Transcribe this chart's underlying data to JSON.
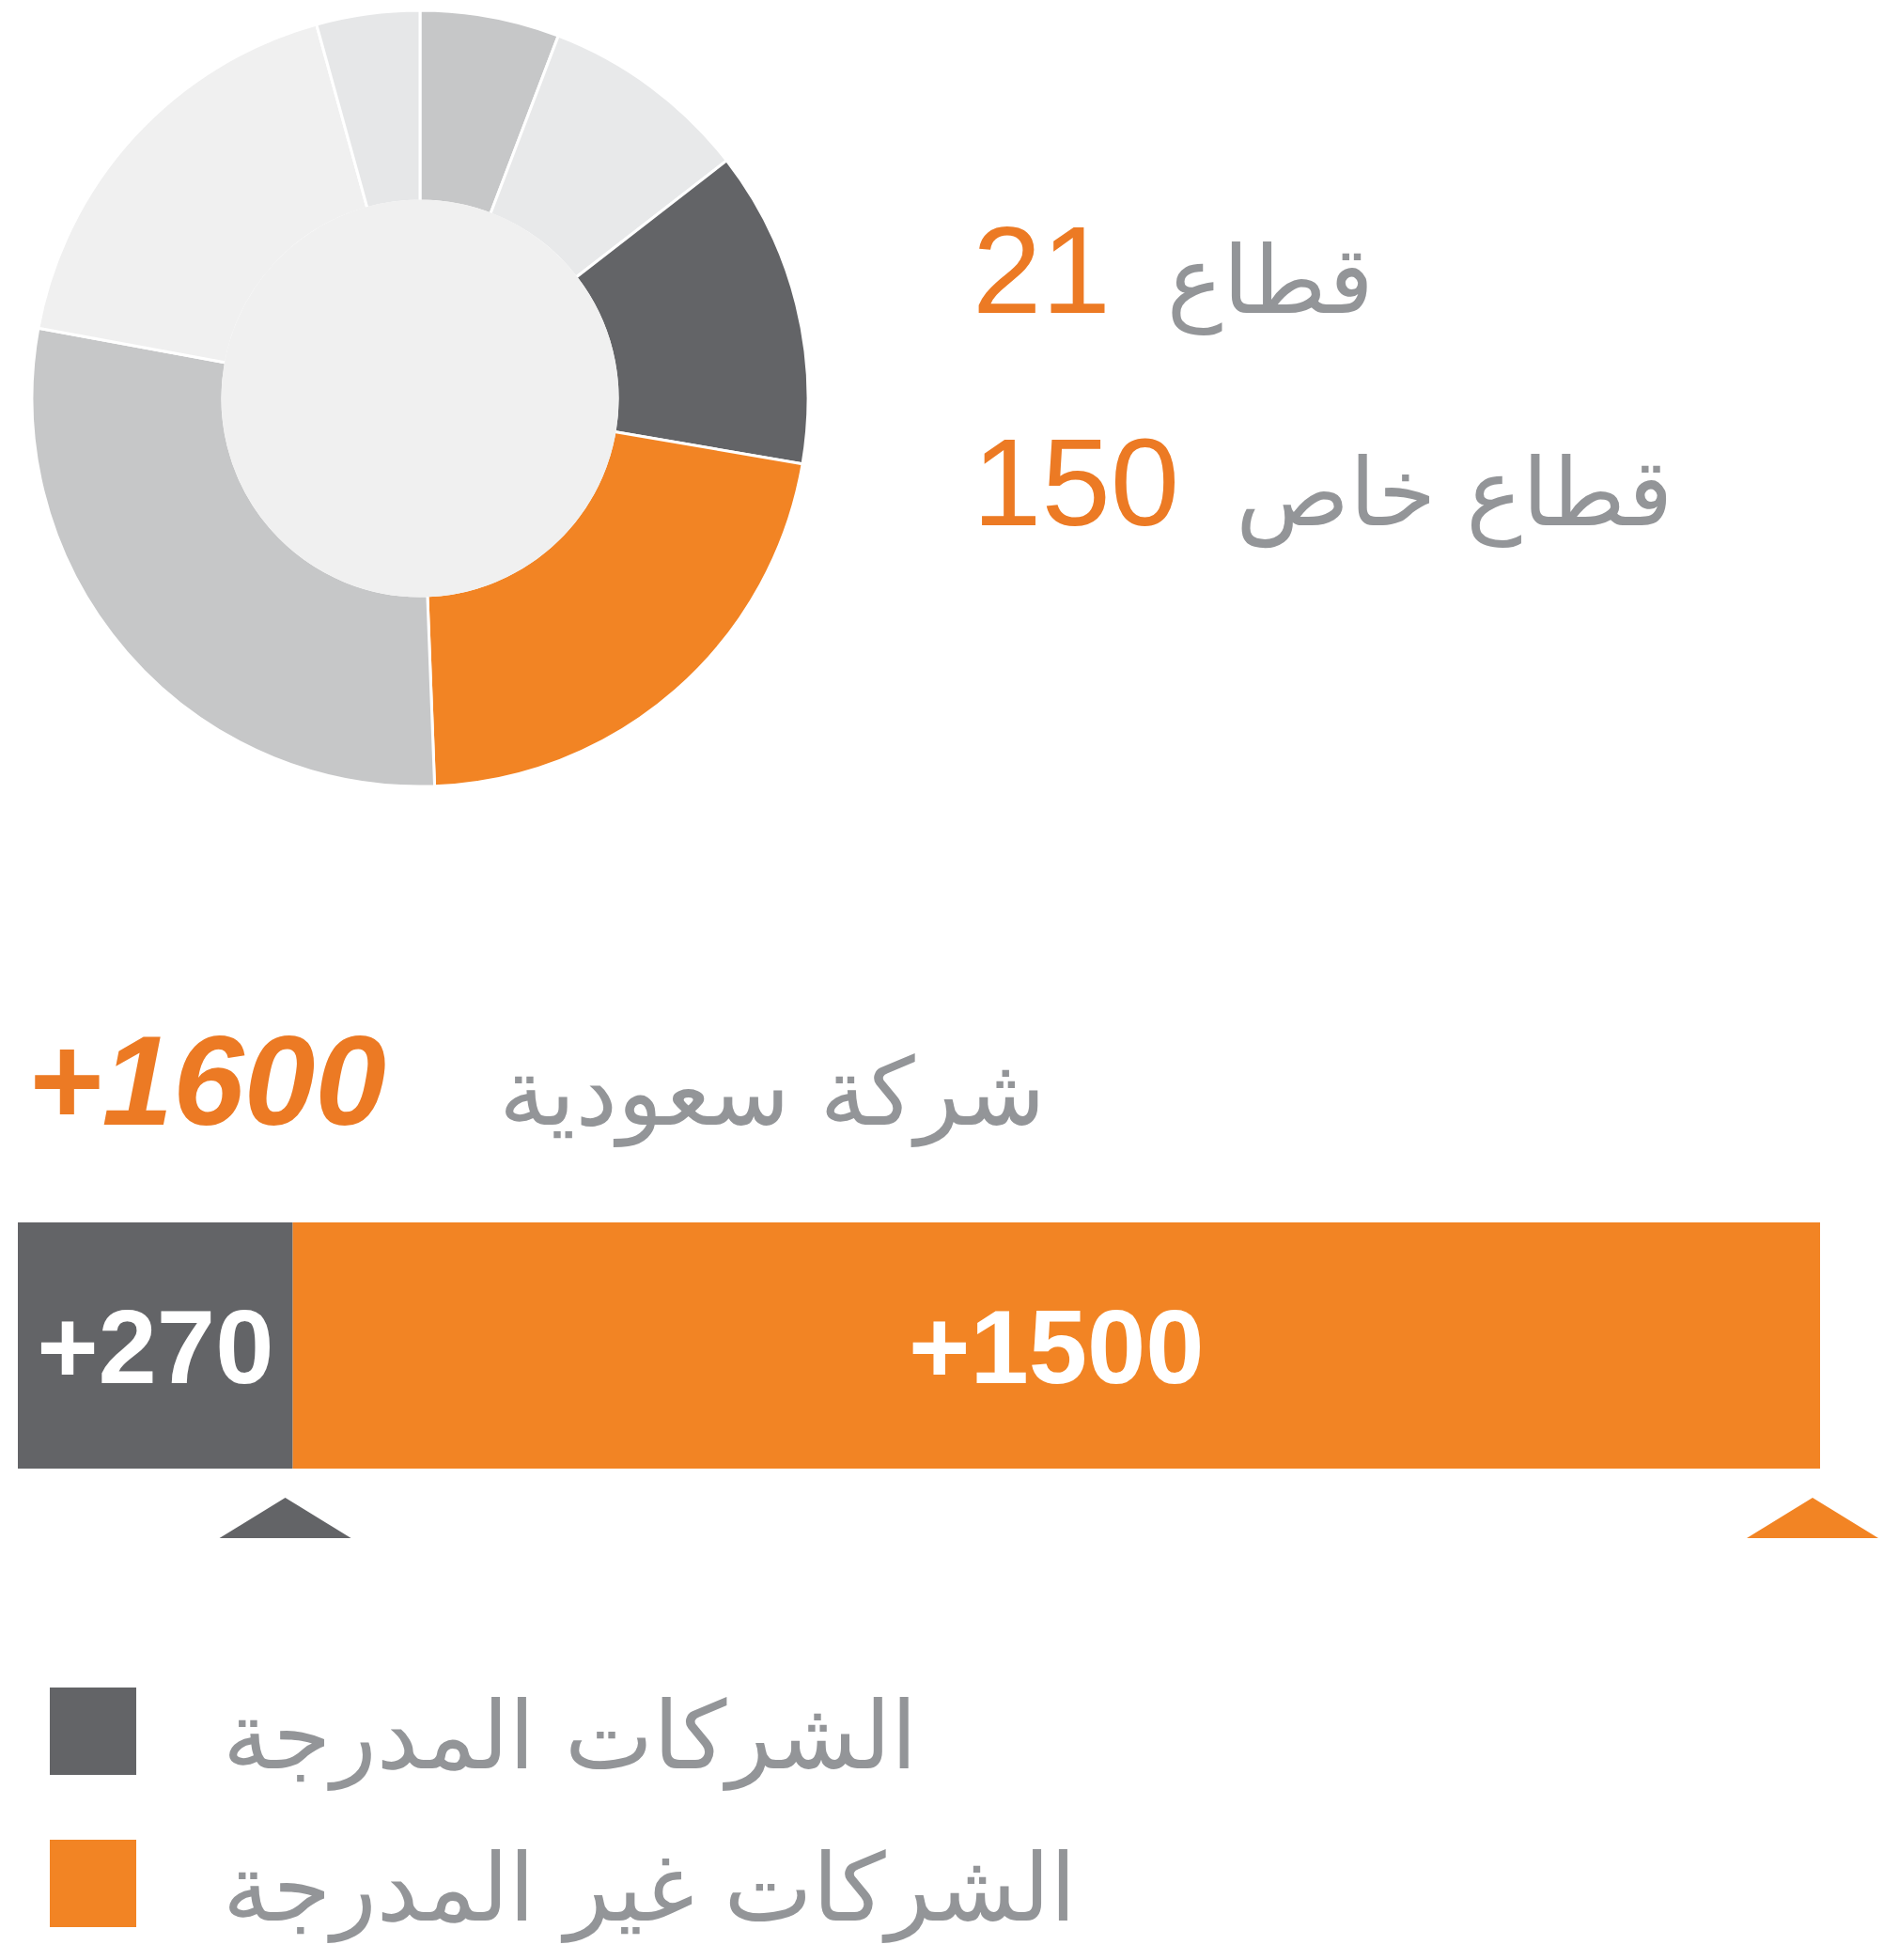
{
  "chart_data": [
    {
      "type": "donut",
      "categories": [
        null,
        null,
        null,
        null,
        null,
        null,
        null
      ],
      "values": [
        5.8,
        8.7,
        13.2,
        21.7,
        28.5,
        17.8,
        4.3
      ],
      "colors": [
        "#c6c7c8",
        "#e8e9ea",
        "#636467",
        "#f28424",
        "#c6c7c8",
        "#f0f0f0",
        "#e6e7e8"
      ],
      "annotations": [
        "21",
        "قطاع",
        "150",
        "قطاع خاص"
      ]
    },
    {
      "type": "bar",
      "orientation": "horizontal",
      "stacked": true,
      "title": "شركة سعودية",
      "annotations": [
        "+1600"
      ],
      "categories": [
        null
      ],
      "series": [
        {
          "name": "الشركات المدرجة",
          "color": "#636467",
          "values": [
            270
          ],
          "value_labels": [
            "+270"
          ]
        },
        {
          "name": "الشركات غير المدرجة",
          "color": "#f28424",
          "values": [
            1500
          ],
          "value_labels": [
            "+1500"
          ]
        }
      ],
      "legend": "bottom left"
    }
  ]
}
